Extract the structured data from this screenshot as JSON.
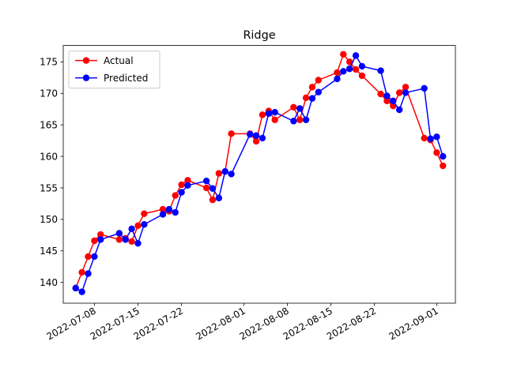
{
  "chart_data": {
    "type": "line",
    "title": "Ridge",
    "xlabel": "",
    "ylabel": "",
    "x_type": "date",
    "xlim": [
      "2022-07-03",
      "2022-09-04"
    ],
    "ylim": [
      136.7,
      177.6
    ],
    "x_ticks": [
      "2022-07-08",
      "2022-07-15",
      "2022-07-22",
      "2022-08-01",
      "2022-08-08",
      "2022-08-15",
      "2022-08-22",
      "2022-09-01"
    ],
    "y_ticks": [
      140,
      145,
      150,
      155,
      160,
      165,
      170,
      175
    ],
    "grid": false,
    "legend": "top-left",
    "x": [
      "2022-07-05",
      "2022-07-06",
      "2022-07-07",
      "2022-07-08",
      "2022-07-09",
      "2022-07-12",
      "2022-07-13",
      "2022-07-14",
      "2022-07-15",
      "2022-07-16",
      "2022-07-19",
      "2022-07-20",
      "2022-07-21",
      "2022-07-22",
      "2022-07-23",
      "2022-07-26",
      "2022-07-27",
      "2022-07-28",
      "2022-07-29",
      "2022-07-30",
      "2022-08-02",
      "2022-08-03",
      "2022-08-04",
      "2022-08-05",
      "2022-08-06",
      "2022-08-09",
      "2022-08-10",
      "2022-08-11",
      "2022-08-12",
      "2022-08-13",
      "2022-08-16",
      "2022-08-17",
      "2022-08-18",
      "2022-08-19",
      "2022-08-20",
      "2022-08-23",
      "2022-08-24",
      "2022-08-25",
      "2022-08-26",
      "2022-08-27",
      "2022-08-30",
      "2022-08-31",
      "2022-09-01",
      "2022-09-02"
    ],
    "series": [
      {
        "name": "Actual",
        "color": "#ff0000",
        "values": [
          139.1,
          141.6,
          144.1,
          146.6,
          147.6,
          146.8,
          147.0,
          146.5,
          149.0,
          150.9,
          151.6,
          151.3,
          153.8,
          155.5,
          156.2,
          155.0,
          153.1,
          157.3,
          157.6,
          163.6,
          163.6,
          162.4,
          166.6,
          167.2,
          165.8,
          167.8,
          165.8,
          169.3,
          171.0,
          172.1,
          173.3,
          176.2,
          175.0,
          173.8,
          172.8,
          169.9,
          168.8,
          168.0,
          170.1,
          171.0,
          162.9,
          162.6,
          160.6,
          158.5
        ]
      },
      {
        "name": "Predicted",
        "color": "#0000ff",
        "values": [
          139.1,
          138.5,
          141.4,
          144.1,
          146.8,
          147.8,
          146.8,
          148.5,
          146.2,
          149.2,
          150.8,
          151.6,
          151.1,
          154.3,
          155.4,
          156.1,
          154.9,
          153.4,
          157.6,
          157.2,
          163.5,
          163.3,
          162.9,
          166.8,
          167.0,
          165.6,
          167.6,
          165.8,
          169.2,
          170.2,
          172.3,
          173.5,
          173.9,
          176.0,
          174.3,
          173.6,
          169.6,
          168.8,
          167.4,
          170.1,
          170.8,
          162.8,
          163.1,
          160.0
        ]
      }
    ]
  }
}
